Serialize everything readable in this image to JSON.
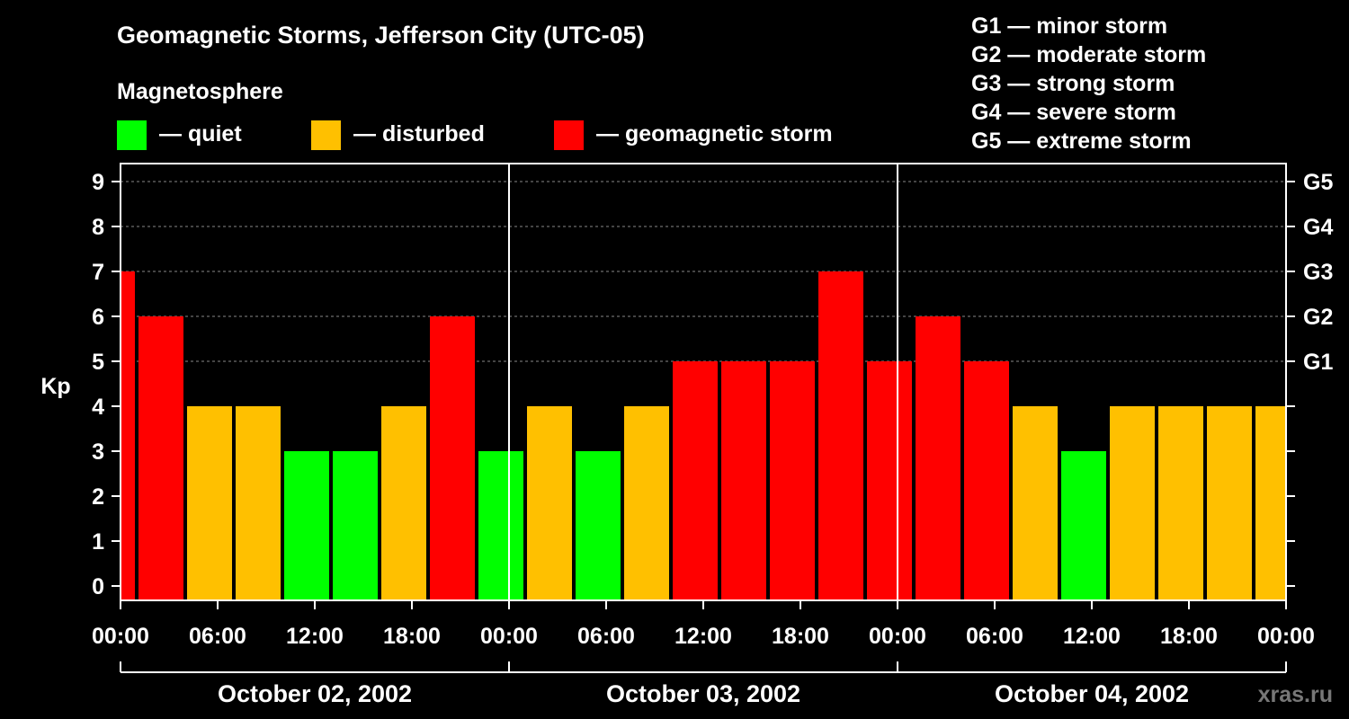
{
  "title": "Geomagnetic Storms, Jefferson City (UTC-05)",
  "legend": {
    "heading": "Magnetosphere",
    "items": [
      {
        "label": "— quiet",
        "color": "#00ff00"
      },
      {
        "label": "— disturbed",
        "color": "#ffc000"
      },
      {
        "label": "— geomagnetic storm",
        "color": "#ff0000"
      }
    ]
  },
  "g_scale_legend": [
    "G1 — minor storm",
    "G2 — moderate storm",
    "G3 — strong storm",
    "G4 — severe storm",
    "G5 — extreme storm"
  ],
  "watermark": "xras.ru",
  "chart_data": {
    "type": "bar",
    "ylabel": "Kp",
    "ylim": [
      0,
      9
    ],
    "yticks": [
      "0",
      "1",
      "2",
      "3",
      "4",
      "5",
      "6",
      "7",
      "8",
      "9"
    ],
    "right_axis_labels": [
      {
        "kp": 5,
        "label": "G1"
      },
      {
        "kp": 6,
        "label": "G2"
      },
      {
        "kp": 7,
        "label": "G3"
      },
      {
        "kp": 8,
        "label": "G4"
      },
      {
        "kp": 9,
        "label": "G5"
      }
    ],
    "xticks": [
      "00:00",
      "06:00",
      "12:00",
      "18:00",
      "00:00",
      "06:00",
      "12:00",
      "18:00",
      "00:00",
      "06:00",
      "12:00",
      "18:00",
      "00:00"
    ],
    "days": [
      "October 02, 2002",
      "October 03, 2002",
      "October 04, 2002"
    ],
    "grid": "dashed horizontal at Kp 5-9",
    "bars": [
      {
        "start_hour": 0,
        "end_hour": 1,
        "kp": 7
      },
      {
        "start_hour": 1,
        "end_hour": 4,
        "kp": 6
      },
      {
        "start_hour": 4,
        "end_hour": 7,
        "kp": 4
      },
      {
        "start_hour": 7,
        "end_hour": 10,
        "kp": 4
      },
      {
        "start_hour": 10,
        "end_hour": 13,
        "kp": 3
      },
      {
        "start_hour": 13,
        "end_hour": 16,
        "kp": 3
      },
      {
        "start_hour": 16,
        "end_hour": 19,
        "kp": 4
      },
      {
        "start_hour": 19,
        "end_hour": 22,
        "kp": 6
      },
      {
        "start_hour": 22,
        "end_hour": 25,
        "kp": 3
      },
      {
        "start_hour": 25,
        "end_hour": 28,
        "kp": 4
      },
      {
        "start_hour": 28,
        "end_hour": 31,
        "kp": 3
      },
      {
        "start_hour": 31,
        "end_hour": 34,
        "kp": 4
      },
      {
        "start_hour": 34,
        "end_hour": 37,
        "kp": 5
      },
      {
        "start_hour": 37,
        "end_hour": 40,
        "kp": 5
      },
      {
        "start_hour": 40,
        "end_hour": 43,
        "kp": 5
      },
      {
        "start_hour": 43,
        "end_hour": 46,
        "kp": 7
      },
      {
        "start_hour": 46,
        "end_hour": 49,
        "kp": 5
      },
      {
        "start_hour": 49,
        "end_hour": 52,
        "kp": 6
      },
      {
        "start_hour": 52,
        "end_hour": 55,
        "kp": 5
      },
      {
        "start_hour": 55,
        "end_hour": 58,
        "kp": 4
      },
      {
        "start_hour": 58,
        "end_hour": 61,
        "kp": 3
      },
      {
        "start_hour": 61,
        "end_hour": 64,
        "kp": 4
      },
      {
        "start_hour": 64,
        "end_hour": 67,
        "kp": 4
      },
      {
        "start_hour": 67,
        "end_hour": 70,
        "kp": 4
      },
      {
        "start_hour": 70,
        "end_hour": 72,
        "kp": 4
      }
    ]
  }
}
